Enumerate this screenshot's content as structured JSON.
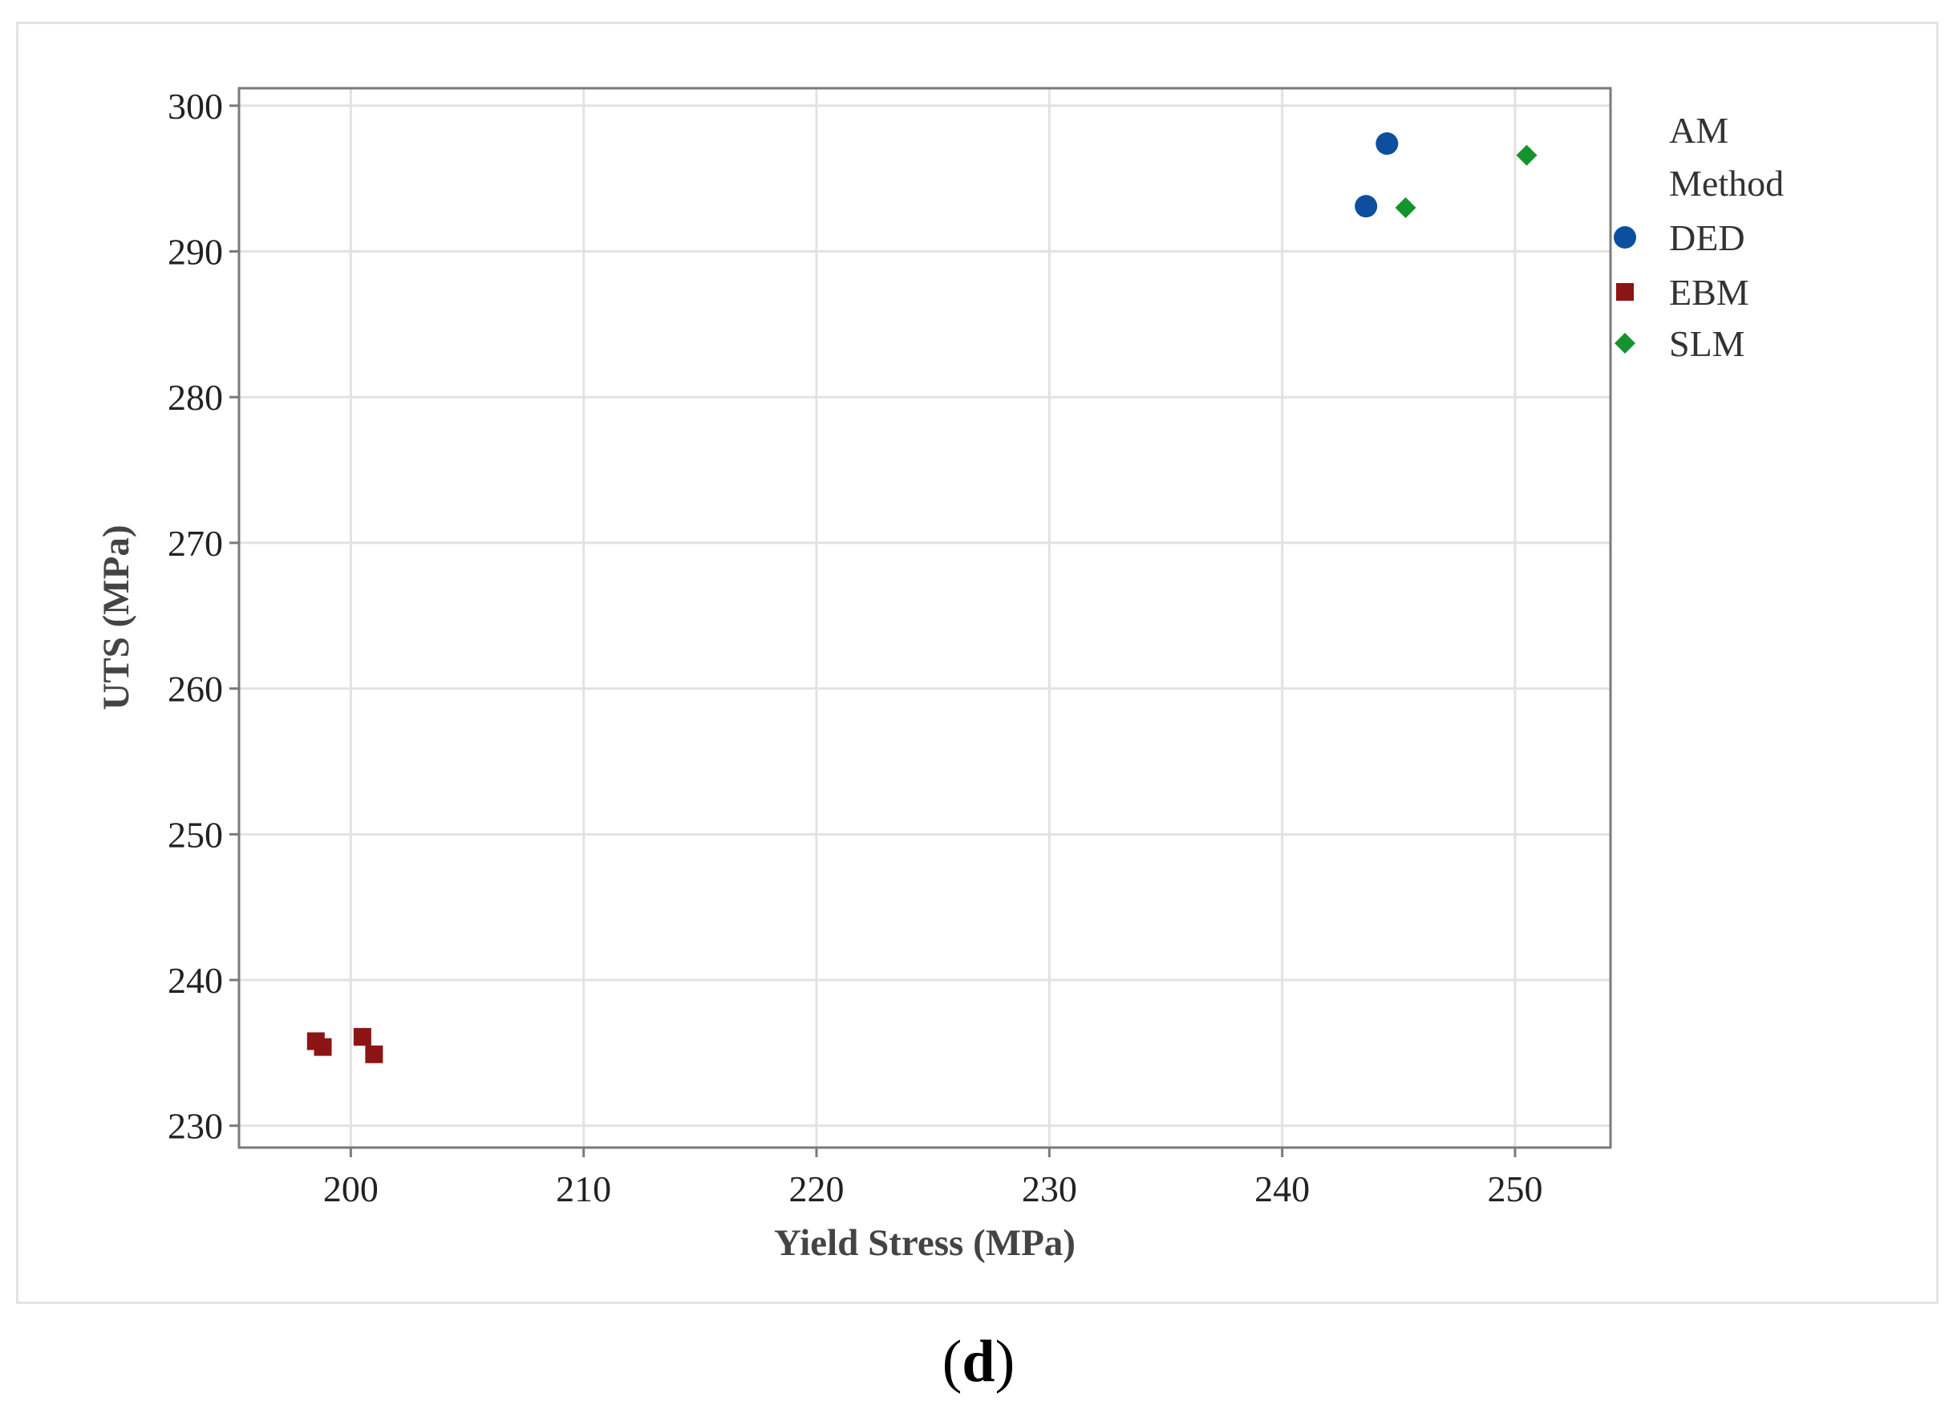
{
  "chart_data": {
    "type": "scatter",
    "xlabel": "Yield Stress (MPa)",
    "ylabel": "UTS (MPa)",
    "xlim": [
      195.2,
      254.1
    ],
    "ylim": [
      228.5,
      301.2
    ],
    "x_ticks": [
      200,
      210,
      220,
      230,
      240,
      250
    ],
    "y_ticks": [
      230,
      240,
      250,
      260,
      270,
      280,
      290,
      300
    ],
    "grid": true,
    "legend": {
      "title_lines": [
        "AM",
        "Method"
      ],
      "placement": "right"
    },
    "series": [
      {
        "name": "DED",
        "marker": "circle",
        "color": "#0b4f9e",
        "points": [
          {
            "x": 244.5,
            "y": 297.4
          },
          {
            "x": 243.6,
            "y": 293.1
          }
        ]
      },
      {
        "name": "EBM",
        "marker": "square",
        "color": "#8c1414",
        "points": [
          {
            "x": 198.5,
            "y": 235.8
          },
          {
            "x": 198.8,
            "y": 235.4
          },
          {
            "x": 200.5,
            "y": 236.1
          },
          {
            "x": 201.0,
            "y": 234.9
          }
        ]
      },
      {
        "name": "SLM",
        "marker": "diamond",
        "color": "#14932e",
        "points": [
          {
            "x": 250.5,
            "y": 296.6
          },
          {
            "x": 245.3,
            "y": 293.0
          }
        ]
      }
    ]
  },
  "caption": {
    "open": "(",
    "letter": "d",
    "close": ")"
  }
}
